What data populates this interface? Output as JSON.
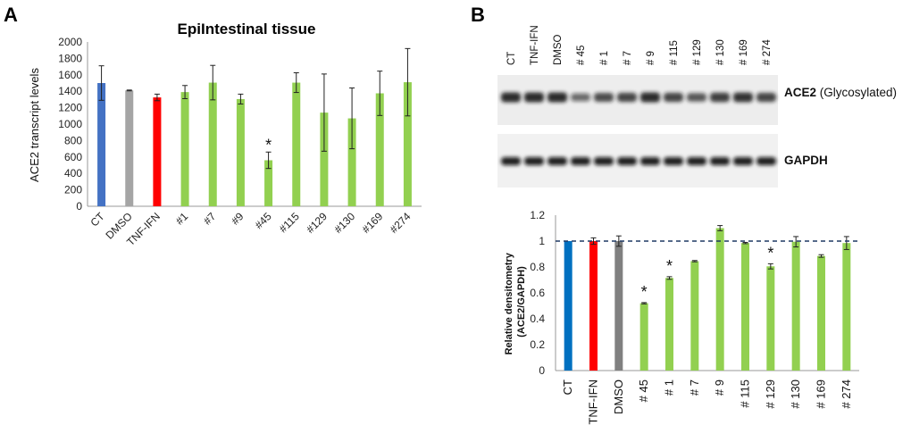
{
  "panel_a": {
    "label": "A",
    "title": "EpiIntestinal tissue",
    "ylabel": "ACE2  transcript levels",
    "yticks": [
      "0",
      "200",
      "400",
      "600",
      "800",
      "1000",
      "1200",
      "1400",
      "1600",
      "1800",
      "2000"
    ]
  },
  "panel_b": {
    "label": "B",
    "lanes": [
      "CT",
      "TNF-IFN",
      "DMSO",
      "# 45",
      "# 1",
      "# 7",
      "# 9",
      "# 115",
      "# 129",
      "# 130",
      "# 169",
      "# 274"
    ],
    "blot1_label_bold": "ACE2",
    "blot1_label_rest": " (Glycosylated)",
    "blot2_label": "GAPDH",
    "ylabel_line1": "Relative densitometry",
    "ylabel_line2": "(ACE2/GAPDH)",
    "yticks": [
      "0",
      "0.2",
      "0.4",
      "0.6",
      "0.8",
      "1",
      "1.2"
    ]
  },
  "colors": {
    "blue": "#4472C4",
    "gray": "#A5A5A5",
    "red": "#FF0000",
    "green": "#92D050",
    "blue_b": "#0070C0",
    "gray_b": "#808080",
    "dashed": "#1F3864"
  },
  "chart_data": [
    {
      "type": "bar",
      "title": "EpiIntestinal tissue",
      "xlabel": "",
      "ylabel": "ACE2  transcript levels",
      "ylim": [
        0,
        2000
      ],
      "categories": [
        "CT",
        "DMSO",
        "TNF-IFN",
        "#1",
        "#7",
        "#9",
        "#45",
        "#115",
        "#129",
        "#130",
        "#169",
        "#274"
      ],
      "values": [
        1500,
        1410,
        1325,
        1390,
        1505,
        1305,
        560,
        1505,
        1140,
        1070,
        1375,
        1510
      ],
      "errors": [
        210,
        5,
        40,
        80,
        210,
        60,
        100,
        120,
        470,
        370,
        270,
        410
      ],
      "colors": [
        "blue",
        "gray",
        "red",
        "green",
        "green",
        "green",
        "green",
        "green",
        "green",
        "green",
        "green",
        "green"
      ],
      "significant": [
        "#45"
      ],
      "grid": false
    },
    {
      "type": "bar",
      "title": "",
      "xlabel": "",
      "ylabel": "Relative densitometry (ACE2/GAPDH)",
      "ylim": [
        0,
        1.2
      ],
      "categories": [
        "CT",
        "TNF-IFN",
        "DMSO",
        "# 45",
        "# 1",
        "# 7",
        "# 9",
        "# 115",
        "# 129",
        "# 130",
        "# 169",
        "# 274"
      ],
      "values": [
        1.0,
        1.0,
        1.0,
        0.52,
        0.715,
        0.845,
        1.1,
        0.985,
        0.805,
        0.995,
        0.885,
        0.985
      ],
      "errors": [
        0,
        0.025,
        0.04,
        0.005,
        0.01,
        0.005,
        0.02,
        0.005,
        0.02,
        0.04,
        0.01,
        0.05
      ],
      "colors": [
        "blue_b",
        "red",
        "gray_b",
        "green",
        "green",
        "green",
        "green",
        "green",
        "green",
        "green",
        "green",
        "green"
      ],
      "significant": [
        "# 45",
        "# 1",
        "# 129"
      ],
      "reference_line": 1,
      "grid": false
    }
  ]
}
